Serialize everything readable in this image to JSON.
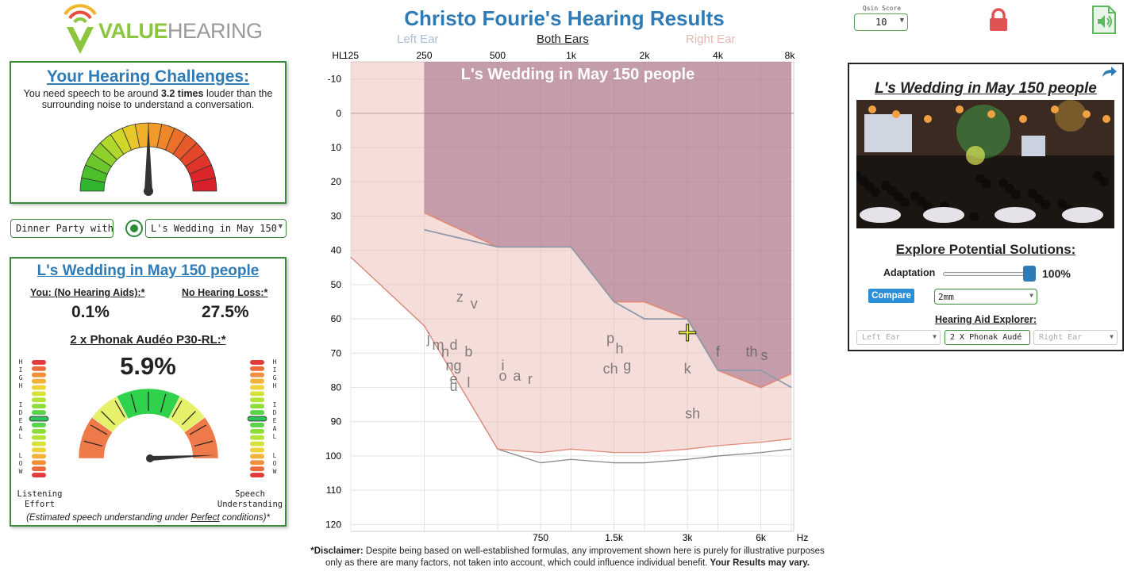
{
  "logo": {
    "text_bold": "VALUE",
    "text_light": "HEARING"
  },
  "header": {
    "title": "Christo Fourie's Hearing Results",
    "tabs": {
      "left": "Left Ear",
      "both": "Both Ears",
      "right": "Right Ear"
    },
    "qsin": {
      "label": "Qsin Score",
      "value": "10"
    },
    "icons": {
      "lock": "lock-icon",
      "sound": "sound-file-icon"
    },
    "lock_color": "#e05353",
    "sound_color": "#5cb85c"
  },
  "challenges": {
    "title": "Your Hearing Challenges:",
    "text_before": "You need speech to be around ",
    "text_bold": "3.2 times",
    "text_after": " louder than the surrounding noise to understand a conversation.",
    "needle_fraction": 0.5
  },
  "scenario_selects": {
    "first": "Dinner Party with",
    "second": "L's Wedding in May 150"
  },
  "scenario": {
    "title": "L's Wedding in May 150 people",
    "you_label": "You: (No Hearing Aids):*",
    "you_value": "0.1%",
    "nl_label": "No Hearing Loss:*",
    "nl_value": "27.5%",
    "aid_label": "2 x Phonak Audéo P30-RL:*",
    "aid_value": "5.9%",
    "left_scale": [
      "H",
      "I",
      "G",
      "H",
      "",
      "I",
      "D",
      "E",
      "A",
      "L",
      "",
      "L",
      "O",
      "W"
    ],
    "right_scale": [
      "H",
      "I",
      "G",
      "H",
      "",
      "I",
      "D",
      "E",
      "A",
      "L",
      "",
      "L",
      "O",
      "W"
    ],
    "listening_effort": "Listening Effort",
    "speech_understanding": "Speech Understanding",
    "note_before": "(Estimated speech understanding under ",
    "note_under": "Perfect",
    "note_after": " conditions)*",
    "effort_level": 0.3,
    "understanding_level": 0.04
  },
  "chart_data": {
    "type": "area",
    "title": "L's Wedding in May 150 people",
    "y_axis_label_top": "HL",
    "x_unit": "Hz",
    "x_top_ticks": [
      "125",
      "250",
      "500",
      "1k",
      "2k",
      "4k",
      "8k"
    ],
    "x_bottom_ticks": [
      "750",
      "1.5k",
      "3k",
      "6k"
    ],
    "y_ticks": [
      -10,
      0,
      10,
      20,
      30,
      40,
      50,
      60,
      70,
      80,
      90,
      100,
      110,
      120
    ],
    "ylim": [
      -15,
      122
    ],
    "y_reversed": true,
    "x_scale": "log2",
    "grid": true,
    "series": [
      {
        "x": [
          250,
          500,
          1000,
          1500,
          2000,
          3000,
          4000,
          6000,
          8000
        ],
        "values": [
          29,
          39,
          39,
          55,
          55,
          60,
          75,
          80,
          76
        ],
        "color": "#e08a7a"
      },
      {
        "x": [
          250,
          500,
          1000,
          1500,
          2000,
          3000,
          4000,
          6000,
          8000
        ],
        "values": [
          34,
          39,
          39,
          55,
          60,
          60,
          75,
          75,
          80
        ],
        "color": "#8e9aaa"
      }
    ],
    "noise_floor": {
      "x": [
        125,
        250,
        500,
        750,
        1000,
        1500,
        2000,
        3000,
        4000,
        6000,
        8000
      ],
      "values": [
        42,
        62,
        98,
        99,
        98,
        99,
        99,
        98,
        97,
        96,
        95
      ]
    },
    "phonemes": [
      {
        "t": "z",
        "x": 350,
        "y": 55
      },
      {
        "t": "v",
        "x": 400,
        "y": 57
      },
      {
        "t": "j",
        "x": 260,
        "y": 67
      },
      {
        "t": "m",
        "x": 285,
        "y": 69
      },
      {
        "t": "d",
        "x": 330,
        "y": 69
      },
      {
        "t": "b",
        "x": 380,
        "y": 71
      },
      {
        "t": "n",
        "x": 305,
        "y": 71
      },
      {
        "t": "ng",
        "x": 330,
        "y": 75
      },
      {
        "t": "e",
        "x": 330,
        "y": 79
      },
      {
        "t": "u",
        "x": 330,
        "y": 81
      },
      {
        "t": "l",
        "x": 380,
        "y": 80
      },
      {
        "t": "i",
        "x": 525,
        "y": 75
      },
      {
        "t": "o",
        "x": 525,
        "y": 78
      },
      {
        "t": "a",
        "x": 600,
        "y": 78
      },
      {
        "t": "r",
        "x": 680,
        "y": 79
      },
      {
        "t": "p",
        "x": 1450,
        "y": 67
      },
      {
        "t": "h",
        "x": 1580,
        "y": 70
      },
      {
        "t": "ch",
        "x": 1450,
        "y": 76
      },
      {
        "t": "g",
        "x": 1700,
        "y": 75
      },
      {
        "t": "k",
        "x": 3000,
        "y": 76
      },
      {
        "t": "sh",
        "x": 3150,
        "y": 89
      },
      {
        "t": "f",
        "x": 4000,
        "y": 71
      },
      {
        "t": "th",
        "x": 5500,
        "y": 71
      },
      {
        "t": "s",
        "x": 6200,
        "y": 72
      }
    ],
    "cursor": {
      "x": 3000,
      "y": 64
    }
  },
  "right_panel": {
    "title": "L's Wedding in May 150 people",
    "share_icon": "share-icon",
    "photo_alt": "wedding-party-photo",
    "solutions_title": "Explore Potential Solutions:",
    "adaptation_label": "Adaptation",
    "adaptation_value": "100%",
    "adaptation_level": 1.0,
    "compare_label": "Compare",
    "vent_value": "2mm",
    "explorer_label": "Hearing Aid Explorer:",
    "left_ear": "Left Ear",
    "aid_model": "2 X Phonak Audé",
    "right_ear": "Right Ear"
  },
  "disclaimer": {
    "bold_start": "*Disclaimer:",
    "body": " Despite being based on well-established formulas, any improvement shown here is purely for illustrative purposes only as there are many factors, not taken into account, which could influence individual benefit. ",
    "bold_end": "Your Results may vary."
  }
}
